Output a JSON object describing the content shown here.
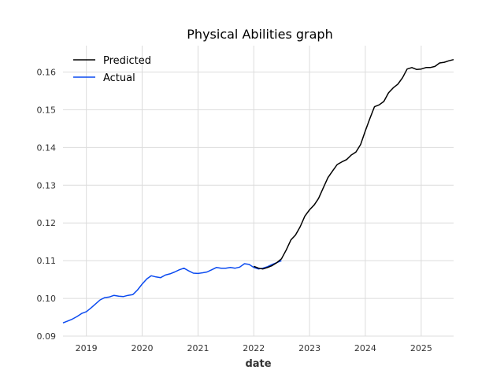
{
  "chart_data": {
    "type": "line",
    "title": "Physical Abilities graph",
    "xlabel": "date",
    "ylabel": "",
    "xlim": [
      "2018-08-01",
      "2025-08-01"
    ],
    "ylim": [
      0.09,
      0.167
    ],
    "x_ticks": [
      "2019",
      "2020",
      "2021",
      "2022",
      "2023",
      "2024",
      "2025"
    ],
    "y_ticks": [
      "0.09",
      "0.10",
      "0.11",
      "0.12",
      "0.13",
      "0.14",
      "0.15",
      "0.16"
    ],
    "grid": true,
    "legend_position": "top-left",
    "series": [
      {
        "name": "Predicted",
        "color": "#000000",
        "x": [
          "2022-01-01",
          "2022-02-01",
          "2022-03-01",
          "2022-04-01",
          "2022-05-01",
          "2022-06-01",
          "2022-07-01",
          "2022-08-01",
          "2022-09-01",
          "2022-10-01",
          "2022-11-01",
          "2022-12-01",
          "2023-01-01",
          "2023-02-01",
          "2023-03-01",
          "2023-04-01",
          "2023-05-01",
          "2023-06-01",
          "2023-07-01",
          "2023-08-01",
          "2023-09-01",
          "2023-10-01",
          "2023-11-01",
          "2023-12-01",
          "2024-01-01",
          "2024-02-01",
          "2024-03-01",
          "2024-04-01",
          "2024-05-01",
          "2024-06-01",
          "2024-07-01",
          "2024-08-01",
          "2024-09-01",
          "2024-10-01",
          "2024-11-01",
          "2024-12-01",
          "2025-01-01",
          "2025-02-01",
          "2025-03-01",
          "2025-04-01",
          "2025-05-01",
          "2025-06-01",
          "2025-07-01",
          "2025-08-01"
        ],
        "y": [
          0.1085,
          0.108,
          0.1078,
          0.1082,
          0.1087,
          0.1095,
          0.1105,
          0.1128,
          0.1155,
          0.1168,
          0.119,
          0.1218,
          0.1235,
          0.1248,
          0.1265,
          0.1293,
          0.132,
          0.1338,
          0.1355,
          0.1362,
          0.1368,
          0.138,
          0.1388,
          0.1408,
          0.1444,
          0.1478,
          0.1508,
          0.1513,
          0.1522,
          0.1545,
          0.1558,
          0.1568,
          0.1585,
          0.1608,
          0.1612,
          0.1607,
          0.1608,
          0.1612,
          0.1612,
          0.1615,
          0.1624,
          0.1626,
          0.163,
          0.1633
        ]
      },
      {
        "name": "Actual",
        "color": "#0a4af0",
        "x": [
          "2018-08-01",
          "2018-09-01",
          "2018-10-01",
          "2018-11-01",
          "2018-12-01",
          "2019-01-01",
          "2019-02-01",
          "2019-03-01",
          "2019-04-01",
          "2019-05-01",
          "2019-06-01",
          "2019-07-01",
          "2019-08-01",
          "2019-09-01",
          "2019-10-01",
          "2019-11-01",
          "2019-12-01",
          "2020-01-01",
          "2020-02-01",
          "2020-03-01",
          "2020-04-01",
          "2020-05-01",
          "2020-06-01",
          "2020-07-01",
          "2020-08-01",
          "2020-09-01",
          "2020-10-01",
          "2020-11-01",
          "2020-12-01",
          "2021-01-01",
          "2021-02-01",
          "2021-03-01",
          "2021-04-01",
          "2021-05-01",
          "2021-06-01",
          "2021-07-01",
          "2021-08-01",
          "2021-09-01",
          "2021-10-01",
          "2021-11-01",
          "2021-12-01",
          "2022-01-01",
          "2022-02-01",
          "2022-03-01",
          "2022-04-01",
          "2022-05-01",
          "2022-06-01",
          "2022-07-01"
        ],
        "y": [
          0.0935,
          0.094,
          0.0945,
          0.0952,
          0.096,
          0.0965,
          0.0975,
          0.0985,
          0.0996,
          0.1002,
          0.1004,
          0.1008,
          0.1006,
          0.1005,
          0.1008,
          0.101,
          0.1022,
          0.1038,
          0.1052,
          0.106,
          0.1057,
          0.1055,
          0.1062,
          0.1065,
          0.107,
          0.1076,
          0.108,
          0.1073,
          0.1067,
          0.1066,
          0.1068,
          0.107,
          0.1076,
          0.1082,
          0.108,
          0.108,
          0.1082,
          0.108,
          0.1083,
          0.1092,
          0.109,
          0.1082,
          0.1078,
          0.108,
          0.1084,
          0.109,
          0.1095,
          0.11
        ]
      }
    ]
  }
}
